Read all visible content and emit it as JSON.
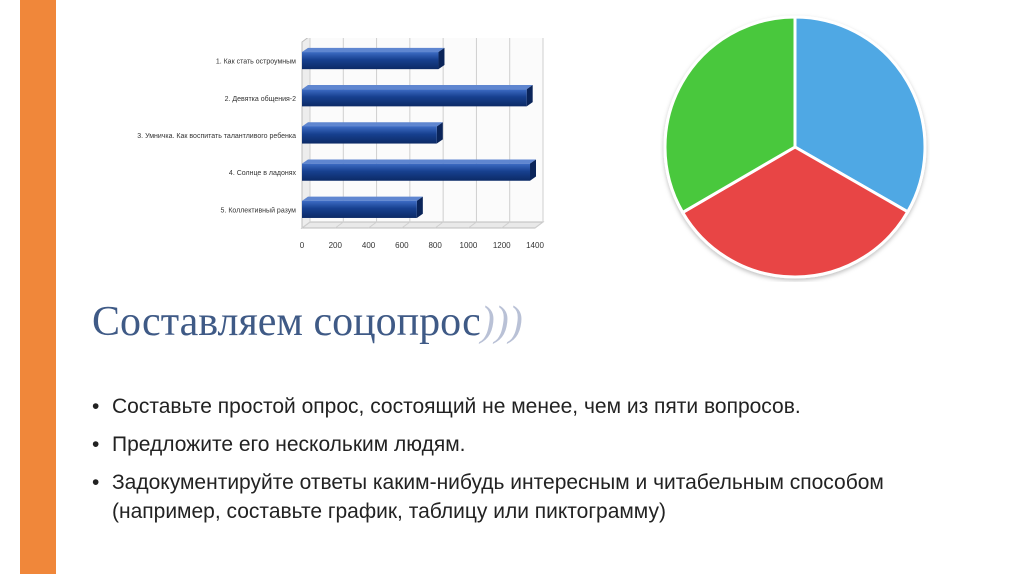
{
  "theme": {
    "accent": "#f0873a",
    "title_color": "#3f5a86",
    "bar_color": "#17408f",
    "pie_colors": [
      "#4fa8e4",
      "#e84545",
      "#49c83c"
    ]
  },
  "slide": {
    "title": "Составляем соцопрос",
    "title_decoration": ")))",
    "bullets": [
      "Составьте простой опрос, состоящий не менее, чем из пяти вопросов.",
      "Предложите его нескольким людям.",
      "Задокументируйте ответы каким-нибудь интересным и читабельным способом (например, составьте график, таблицу или пиктограмму)"
    ]
  },
  "chart_data": [
    {
      "type": "bar",
      "orientation": "horizontal",
      "categories": [
        "1. Как стать остроумным",
        "2. Девятка общения-2",
        "3. Умничка. Как воспитать талантливого ребенка",
        "4. Солнце в ладонях",
        "5. Коллективный разум"
      ],
      "values": [
        820,
        1350,
        810,
        1370,
        690
      ],
      "xlim": [
        0,
        1400
      ],
      "xticks": [
        0,
        200,
        400,
        600,
        800,
        1000,
        1200,
        1400
      ],
      "grid": true
    },
    {
      "type": "pie",
      "values": [
        33.3,
        33.3,
        33.4
      ],
      "colors": [
        "#4fa8e4",
        "#e84545",
        "#49c83c"
      ]
    }
  ]
}
